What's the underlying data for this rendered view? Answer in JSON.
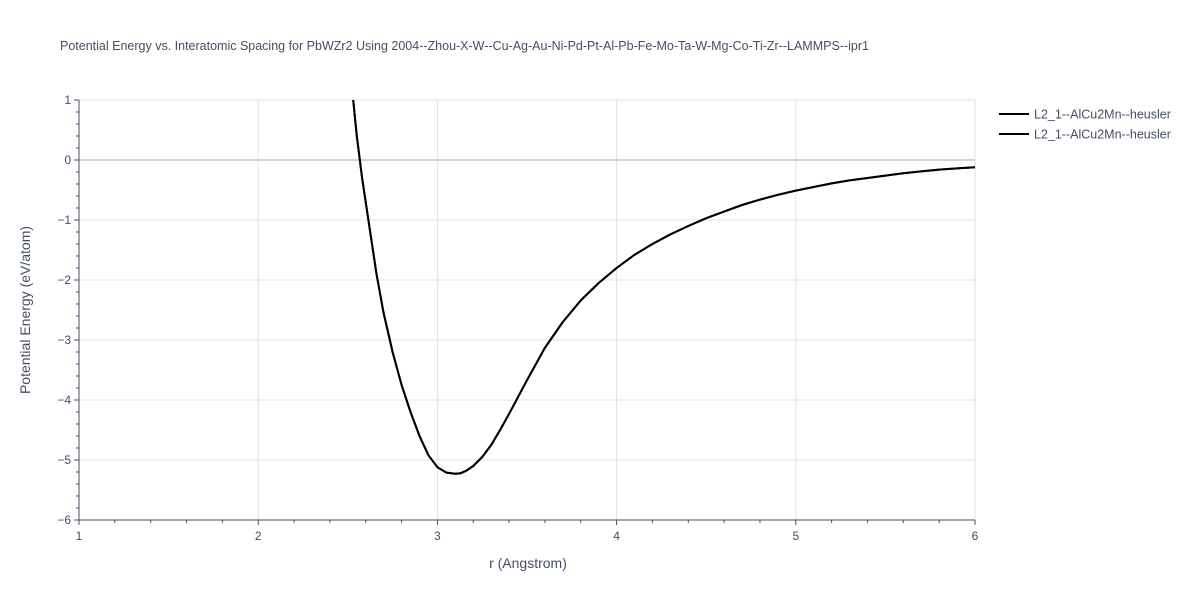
{
  "chart_data": {
    "type": "line",
    "title": "Potential Energy vs. Interatomic Spacing for PbWZr2 Using 2004--Zhou-X-W--Cu-Ag-Au-Ni-Pd-Pt-Al-Pb-Fe-Mo-Ta-W-Mg-Co-Ti-Zr--LAMMPS--ipr1",
    "xlabel": "r (Angstrom)",
    "ylabel": "Potential Energy (eV/atom)",
    "xlim": [
      1,
      6
    ],
    "ylim": [
      -6,
      1
    ],
    "xticks": [
      1,
      2,
      3,
      4,
      5,
      6
    ],
    "yticks": [
      1,
      0,
      -1,
      -2,
      -3,
      -4,
      -5,
      -6
    ],
    "ytick_labels": [
      "1",
      "0",
      "−1",
      "−2",
      "−3",
      "−4",
      "−5",
      "−6"
    ],
    "grid": true,
    "legend_position": "top-right",
    "series": [
      {
        "name": "L2_1--AlCu2Mn--heusler",
        "color": "#000000",
        "x": [
          2.53,
          2.55,
          2.58,
          2.62,
          2.66,
          2.7,
          2.75,
          2.8,
          2.85,
          2.9,
          2.95,
          3.0,
          3.05,
          3.1,
          3.13,
          3.16,
          3.2,
          3.25,
          3.3,
          3.35,
          3.4,
          3.5,
          3.6,
          3.7,
          3.8,
          3.9,
          4.0,
          4.1,
          4.2,
          4.3,
          4.4,
          4.5,
          4.6,
          4.7,
          4.8,
          4.9,
          5.0,
          5.1,
          5.2,
          5.3,
          5.4,
          5.5,
          5.6,
          5.7,
          5.8,
          5.9,
          6.0
        ],
        "y": [
          1.0,
          0.4,
          -0.3,
          -1.1,
          -1.9,
          -2.55,
          -3.2,
          -3.75,
          -4.2,
          -4.6,
          -4.92,
          -5.12,
          -5.21,
          -5.23,
          -5.22,
          -5.18,
          -5.1,
          -4.95,
          -4.75,
          -4.5,
          -4.23,
          -3.67,
          -3.13,
          -2.7,
          -2.34,
          -2.05,
          -1.8,
          -1.58,
          -1.4,
          -1.24,
          -1.1,
          -0.97,
          -0.86,
          -0.75,
          -0.66,
          -0.58,
          -0.51,
          -0.45,
          -0.39,
          -0.34,
          -0.3,
          -0.26,
          -0.22,
          -0.19,
          -0.16,
          -0.14,
          -0.12
        ]
      },
      {
        "name": "L2_1--AlCu2Mn--heusler",
        "color": "#000000",
        "x": [
          2.53,
          2.55,
          2.58,
          2.62,
          2.66,
          2.7,
          2.75,
          2.8,
          2.85,
          2.9,
          2.95,
          3.0,
          3.05,
          3.1,
          3.13,
          3.16,
          3.2,
          3.25,
          3.3,
          3.35,
          3.4,
          3.5,
          3.6,
          3.7,
          3.8,
          3.9,
          4.0,
          4.1,
          4.2,
          4.3,
          4.4,
          4.5,
          4.6,
          4.7,
          4.8,
          4.9,
          5.0,
          5.1,
          5.2,
          5.3,
          5.4,
          5.5,
          5.6,
          5.7,
          5.8,
          5.9,
          6.0
        ],
        "y": [
          1.0,
          0.4,
          -0.3,
          -1.1,
          -1.9,
          -2.55,
          -3.2,
          -3.75,
          -4.2,
          -4.6,
          -4.92,
          -5.12,
          -5.21,
          -5.23,
          -5.22,
          -5.18,
          -5.1,
          -4.95,
          -4.75,
          -4.5,
          -4.23,
          -3.67,
          -3.13,
          -2.7,
          -2.34,
          -2.05,
          -1.8,
          -1.58,
          -1.4,
          -1.24,
          -1.1,
          -0.97,
          -0.86,
          -0.75,
          -0.66,
          -0.58,
          -0.51,
          -0.45,
          -0.39,
          -0.34,
          -0.3,
          -0.26,
          -0.22,
          -0.19,
          -0.16,
          -0.14,
          -0.12
        ]
      }
    ]
  }
}
